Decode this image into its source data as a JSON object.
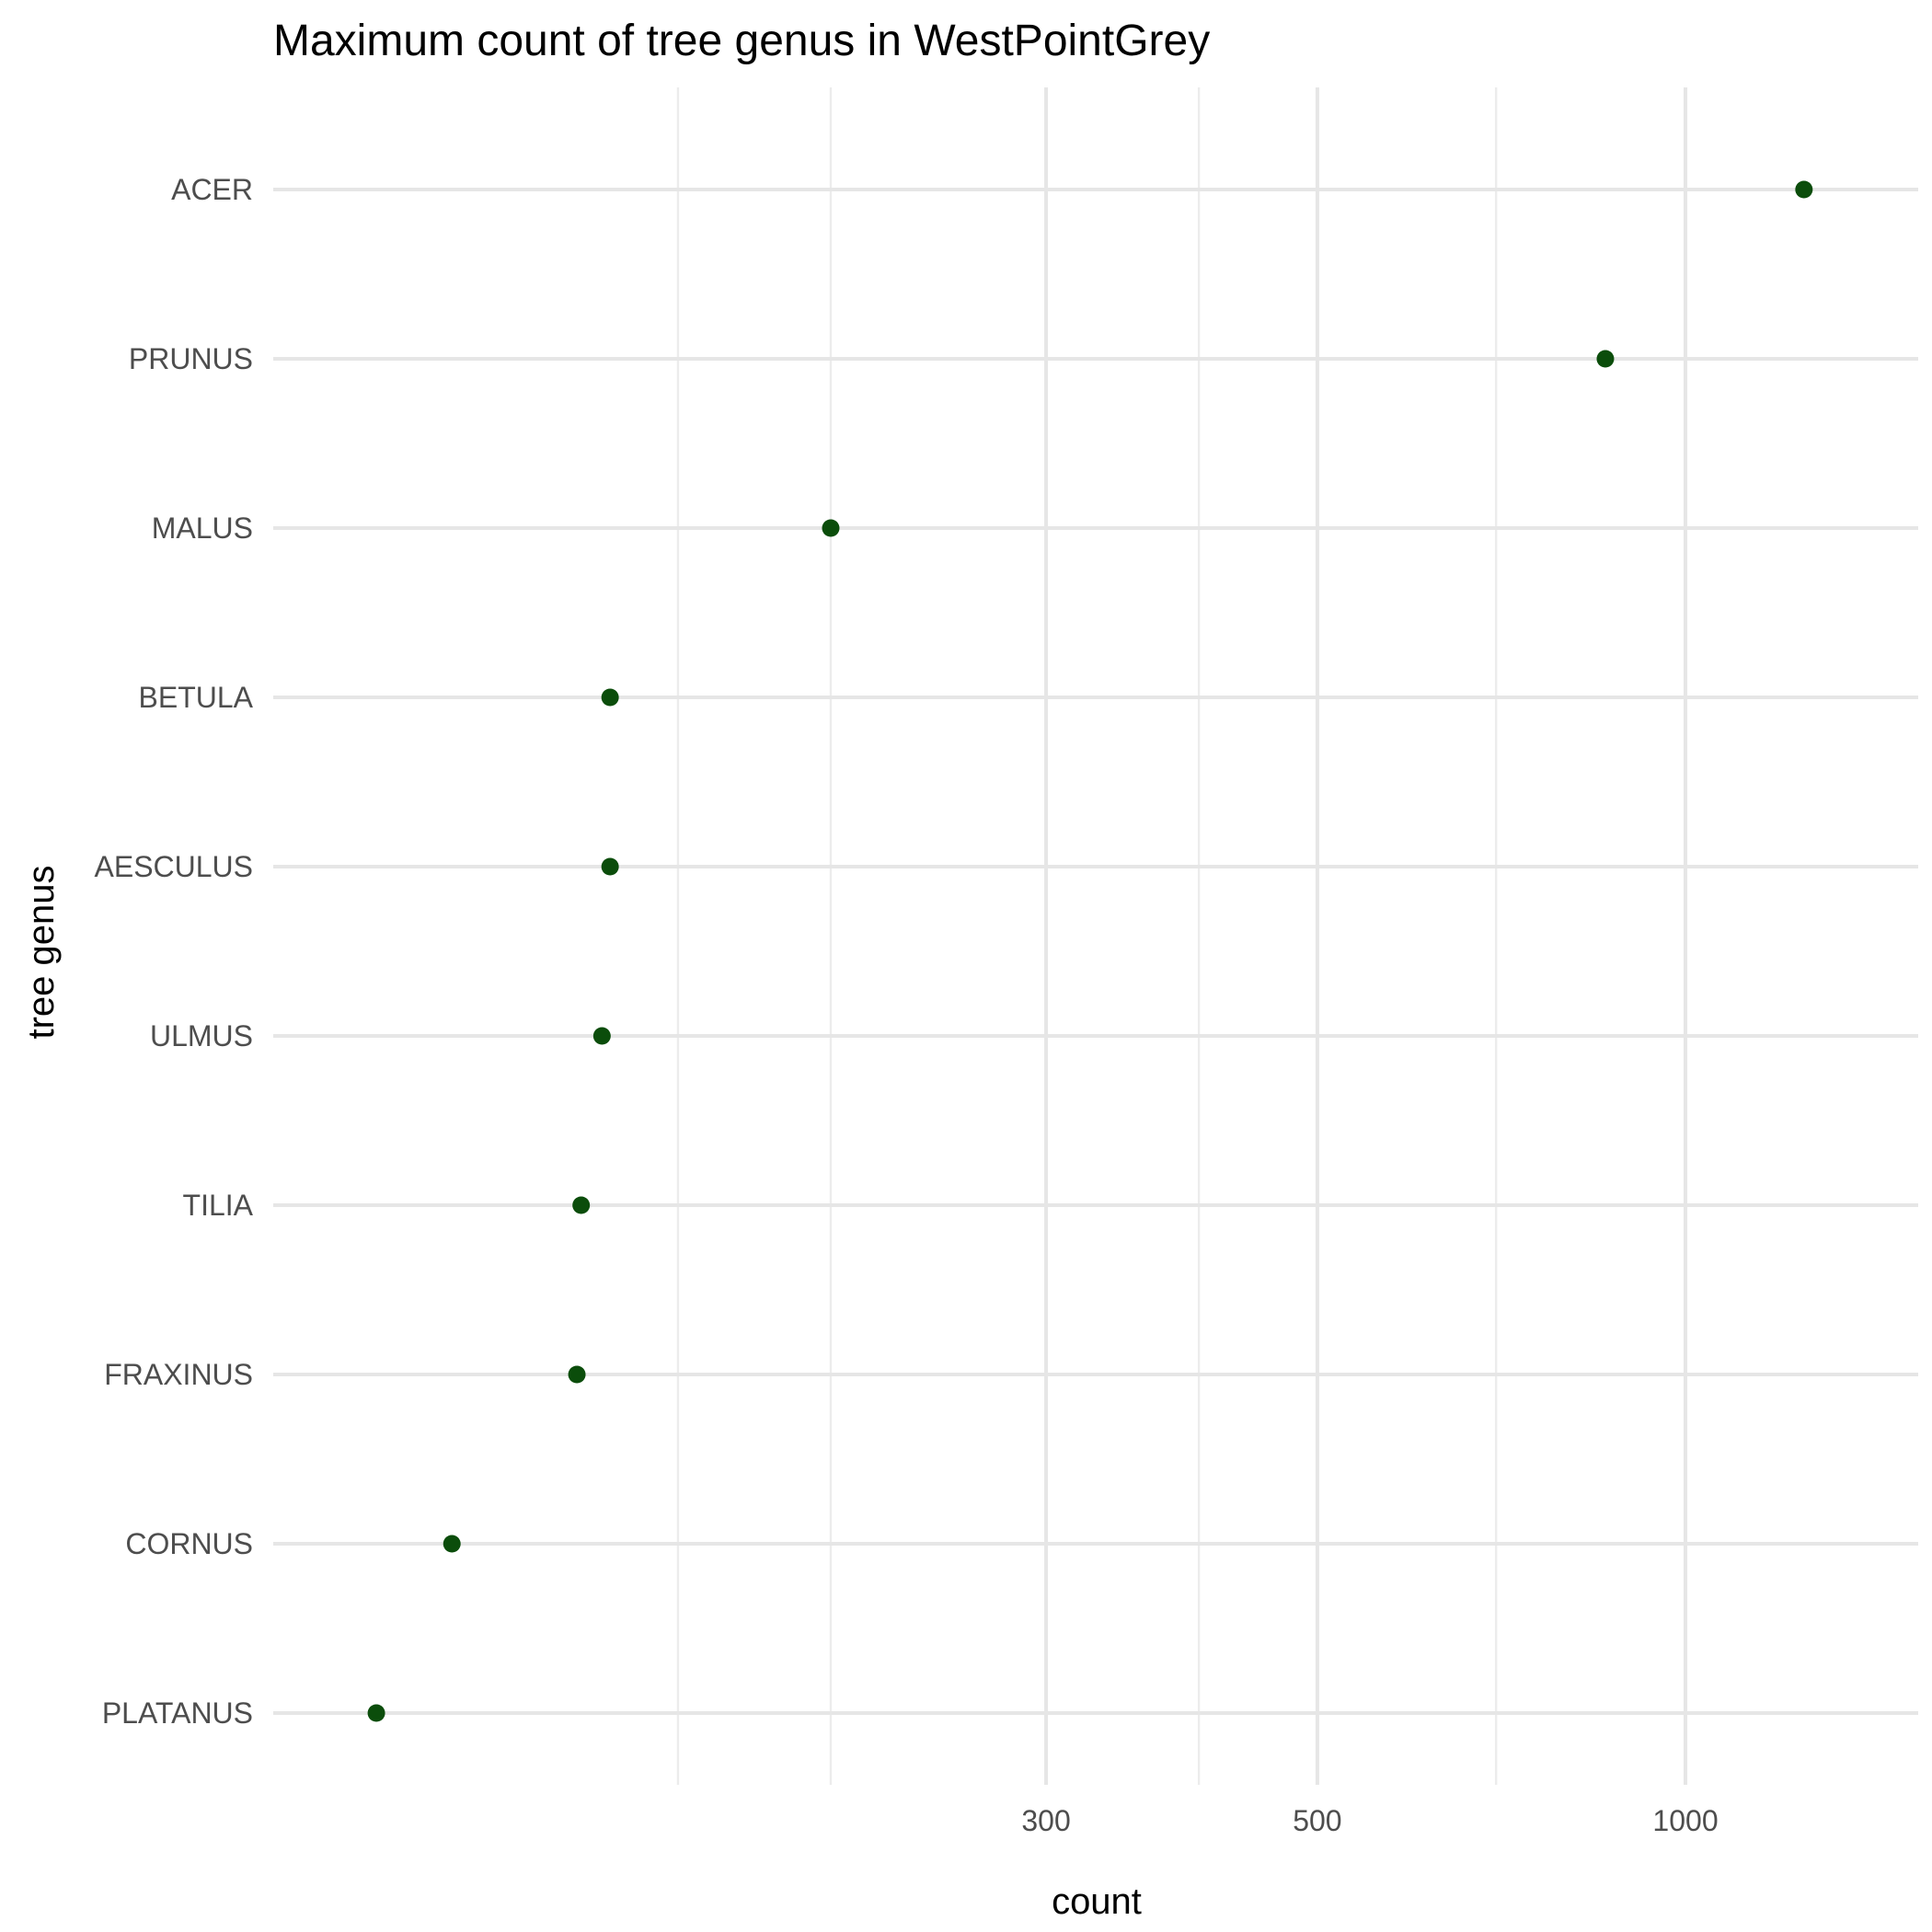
{
  "chart_data": {
    "type": "scatter",
    "title": "Maximum count of tree genus in WestPointGrey",
    "xlabel": "count",
    "ylabel": "tree genus",
    "x_scale": "log10",
    "xlim": [
      70,
      1550
    ],
    "x_major_ticks": [
      300,
      500,
      1000
    ],
    "x_minor_ticks": [
      150,
      200,
      400,
      700
    ],
    "grid": true,
    "legend": "none",
    "point_color": "#0b4d0b",
    "categories": [
      "ACER",
      "PRUNUS",
      "MALUS",
      "BETULA",
      "AESCULUS",
      "ULMUS",
      "TILIA",
      "FRAXINUS",
      "CORNUS",
      "PLATANUS"
    ],
    "values": [
      1250,
      860,
      200,
      132,
      132,
      130,
      125,
      124,
      98,
      85
    ]
  }
}
